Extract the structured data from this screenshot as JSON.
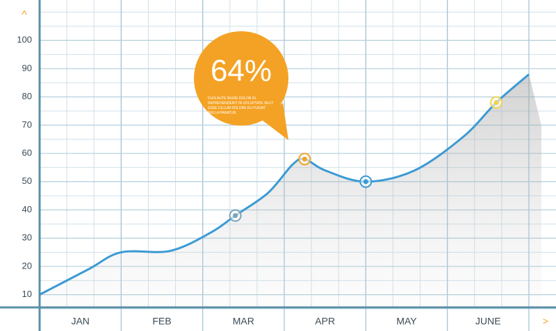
{
  "chart_data": {
    "type": "line",
    "categories": [
      "JAN",
      "FEB",
      "MAR",
      "APR",
      "MAY",
      "JUNE"
    ],
    "xlim": [
      0,
      6
    ],
    "ylim": [
      5,
      110
    ],
    "yticks": [
      10,
      20,
      30,
      40,
      50,
      60,
      70,
      80,
      90,
      100
    ],
    "grid": true,
    "series": [
      {
        "color": "#3a9ad4",
        "x": [
          0,
          0.6,
          1,
          1.6,
          2.1,
          2.4,
          2.8,
          3.1,
          3.25,
          3.5,
          4,
          4.6,
          5.2,
          5.6,
          6
        ],
        "values": [
          10,
          19,
          25,
          25.5,
          32,
          38,
          46,
          56,
          58,
          54,
          50,
          54,
          66,
          78,
          88
        ]
      }
    ],
    "markers": [
      {
        "x": 2.4,
        "value": 38,
        "color": "#7aa3b8"
      },
      {
        "x": 3.25,
        "value": 58,
        "color": "#f4a225"
      },
      {
        "x": 4,
        "value": 50,
        "color": "#3a9ad4"
      },
      {
        "x": 5.6,
        "value": 78,
        "color": "#f0d24a"
      }
    ],
    "annotation": {
      "value": 64,
      "value_label": "64%",
      "text": "DUIS AUTE IRURE DOLOR IN REPREHENDERIT IN VOLUPTATE VELIT ESSE CILLUM DOLORE EU FUGIAT NULLA PARATUR."
    },
    "axis_arrows": [
      "^",
      ">"
    ]
  }
}
